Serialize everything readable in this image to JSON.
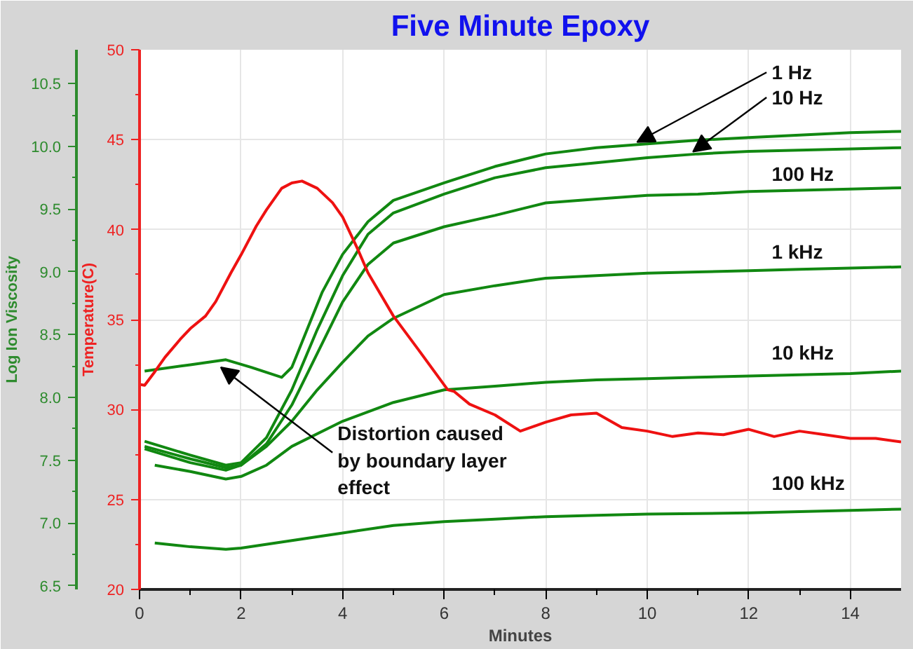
{
  "chart_data": {
    "type": "line",
    "title": "Five Minute Epoxy",
    "xlabel": "Minutes",
    "ylabel": "Log Ion Viscosity",
    "y2label": "Temperature(C)",
    "xlim": [
      0,
      15
    ],
    "xticks": [
      0,
      2,
      4,
      6,
      8,
      10,
      12,
      14
    ],
    "ylim": [
      6.47,
      10.77
    ],
    "yticks": [
      6.5,
      {
        "value": 7,
        "label": "7.0"
      },
      7.5,
      {
        "value": 8,
        "label": "8.0"
      },
      8.5,
      {
        "value": 9,
        "label": "9.0"
      },
      9.5,
      {
        "value": 10,
        "label": "10.0"
      },
      10.5
    ],
    "y2lim": [
      20,
      50
    ],
    "y2ticks": [
      20,
      25,
      30,
      35,
      40,
      45,
      50
    ],
    "grid": true,
    "line_style": "solid",
    "series": [
      {
        "name": "1 Hz",
        "color": "#118811",
        "x": [
          0.1,
          1,
          1.7,
          2.2,
          2.8,
          3,
          3.3,
          3.6,
          4,
          4.5,
          5,
          6,
          7,
          8,
          9,
          10,
          11,
          12,
          13,
          14,
          15
        ],
        "values": [
          8.21,
          8.26,
          8.3,
          8.24,
          8.16,
          8.24,
          8.54,
          8.84,
          9.14,
          9.4,
          9.57,
          9.71,
          9.84,
          9.94,
          9.99,
          10.02,
          10.05,
          10.07,
          10.09,
          10.11,
          10.12
        ]
      },
      {
        "name": "10 Hz",
        "color": "#118811",
        "x": [
          0.1,
          1,
          1.7,
          2,
          2.5,
          3,
          3.5,
          4,
          4.5,
          5,
          6,
          7,
          8,
          9,
          10,
          11,
          12,
          13,
          14,
          15
        ],
        "values": [
          7.65,
          7.54,
          7.46,
          7.48,
          7.68,
          8.06,
          8.54,
          8.97,
          9.3,
          9.47,
          9.62,
          9.75,
          9.83,
          9.87,
          9.91,
          9.94,
          9.96,
          9.97,
          9.98,
          9.99
        ]
      },
      {
        "name": "100 Hz",
        "color": "#118811",
        "x": [
          0.1,
          1,
          1.7,
          2,
          2.5,
          3,
          3.5,
          4,
          4.5,
          5,
          6,
          7,
          8,
          9,
          10,
          11,
          12,
          13,
          14,
          15
        ],
        "values": [
          7.61,
          7.51,
          7.44,
          7.46,
          7.63,
          7.94,
          8.35,
          8.76,
          9.06,
          9.23,
          9.36,
          9.45,
          9.55,
          9.58,
          9.61,
          9.62,
          9.64,
          9.65,
          9.66,
          9.67
        ]
      },
      {
        "name": "1 kHz",
        "color": "#118811",
        "x": [
          0.1,
          1,
          1.7,
          2,
          2.5,
          3,
          3.5,
          4,
          4.5,
          5,
          6,
          7,
          8,
          9,
          10,
          11,
          12,
          13,
          14,
          15
        ],
        "values": [
          7.59,
          7.48,
          7.42,
          7.46,
          7.61,
          7.81,
          8.06,
          8.28,
          8.49,
          8.63,
          8.82,
          8.89,
          8.95,
          8.97,
          8.99,
          9.0,
          9.01,
          9.02,
          9.03,
          9.04
        ]
      },
      {
        "name": "10 kHz",
        "color": "#118811",
        "x": [
          0.3,
          1,
          1.7,
          2,
          2.5,
          3,
          4,
          5,
          6,
          7,
          8,
          9,
          10,
          11,
          12,
          13,
          14,
          15
        ],
        "values": [
          7.46,
          7.41,
          7.35,
          7.37,
          7.46,
          7.61,
          7.81,
          7.96,
          8.06,
          8.09,
          8.12,
          8.14,
          8.15,
          8.16,
          8.17,
          8.18,
          8.19,
          8.21
        ]
      },
      {
        "name": "100 kHz",
        "color": "#118811",
        "x": [
          0.3,
          1,
          1.7,
          2,
          3,
          4,
          5,
          6,
          7,
          8,
          9,
          10,
          12,
          14,
          15
        ],
        "values": [
          6.84,
          6.81,
          6.79,
          6.8,
          6.86,
          6.92,
          6.98,
          7.01,
          7.03,
          7.05,
          7.06,
          7.07,
          7.08,
          7.1,
          7.11
        ]
      },
      {
        "color": "#ee1111",
        "axis": "y2",
        "x": [
          0,
          0.1,
          0.3,
          0.5,
          0.8,
          1,
          1.3,
          1.5,
          1.8,
          2,
          2.3,
          2.5,
          2.8,
          3,
          3.2,
          3.5,
          3.8,
          4,
          4.3,
          4.5,
          5,
          5.5,
          6.07,
          6.2,
          6.5,
          7,
          7.5,
          8,
          8.5,
          9,
          9.5,
          10,
          10.5,
          11,
          11.5,
          12,
          12.5,
          13,
          13.5,
          14,
          14.5,
          15
        ],
        "values": [
          31.4,
          31.35,
          32.1,
          32.9,
          33.9,
          34.5,
          35.2,
          36.0,
          37.6,
          38.6,
          40.2,
          41.1,
          42.3,
          42.6,
          42.7,
          42.3,
          41.5,
          40.7,
          38.9,
          37.6,
          35.2,
          33.3,
          31.1,
          31.0,
          30.3,
          29.7,
          28.8,
          29.3,
          29.7,
          29.8,
          29.0,
          28.8,
          28.5,
          28.7,
          28.6,
          28.9,
          28.5,
          28.8,
          28.6,
          28.4,
          28.4,
          28.2
        ]
      }
    ],
    "annotations": [
      {
        "text": "Distortion caused\nby boundary layer\neffect",
        "x": 1.6,
        "y": 8.28
      }
    ]
  }
}
